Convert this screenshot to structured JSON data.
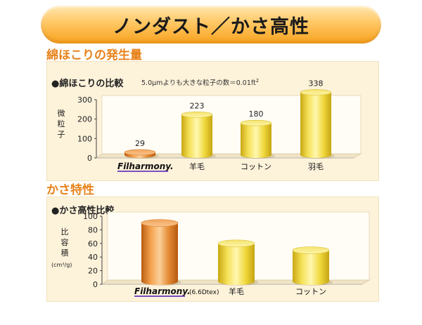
{
  "banner": {
    "title": "ノンダスト／かさ高性"
  },
  "section1": {
    "title": "綿ほこりの発生量",
    "chart_title": "●綿ほこりの比較",
    "note_prefix": "5.0μmよりも大きな粒子の数＝0.01ft",
    "note_sup": "2",
    "ylabel": "微粒子"
  },
  "section2": {
    "title": "かさ特性",
    "chart_title": "●かさ高性比較",
    "ylabel": "比容積",
    "yunit": "(cm³/g)"
  },
  "colors": {
    "orange": "#e58a2e",
    "gold": "#efd33a",
    "accent": "#e8821a",
    "panel": "#fdf2da"
  },
  "chart_data": [
    {
      "type": "bar",
      "title": "●綿ほこりの比較",
      "categories": [
        "Filharmony.",
        "羊毛",
        "コットン",
        "羽毛"
      ],
      "values": [
        29,
        223,
        180,
        338
      ],
      "data_labels": [
        "29",
        "223",
        "180",
        "338"
      ],
      "ylabel": "微粒子",
      "ylim": [
        0,
        300
      ],
      "yticks": [
        0,
        100,
        200,
        300
      ],
      "grid": false
    },
    {
      "type": "bar",
      "title": "●かさ高性比較",
      "categories": [
        "Filharmony. (6.6Dtex)",
        "羊毛",
        "コットン"
      ],
      "values": [
        90,
        60,
        50
      ],
      "ylabel": "比容積",
      "yunit": "(cm³/g)",
      "ylim": [
        0,
        100
      ],
      "yticks": [
        0,
        20,
        40,
        60,
        80,
        100
      ],
      "grid": false
    }
  ]
}
